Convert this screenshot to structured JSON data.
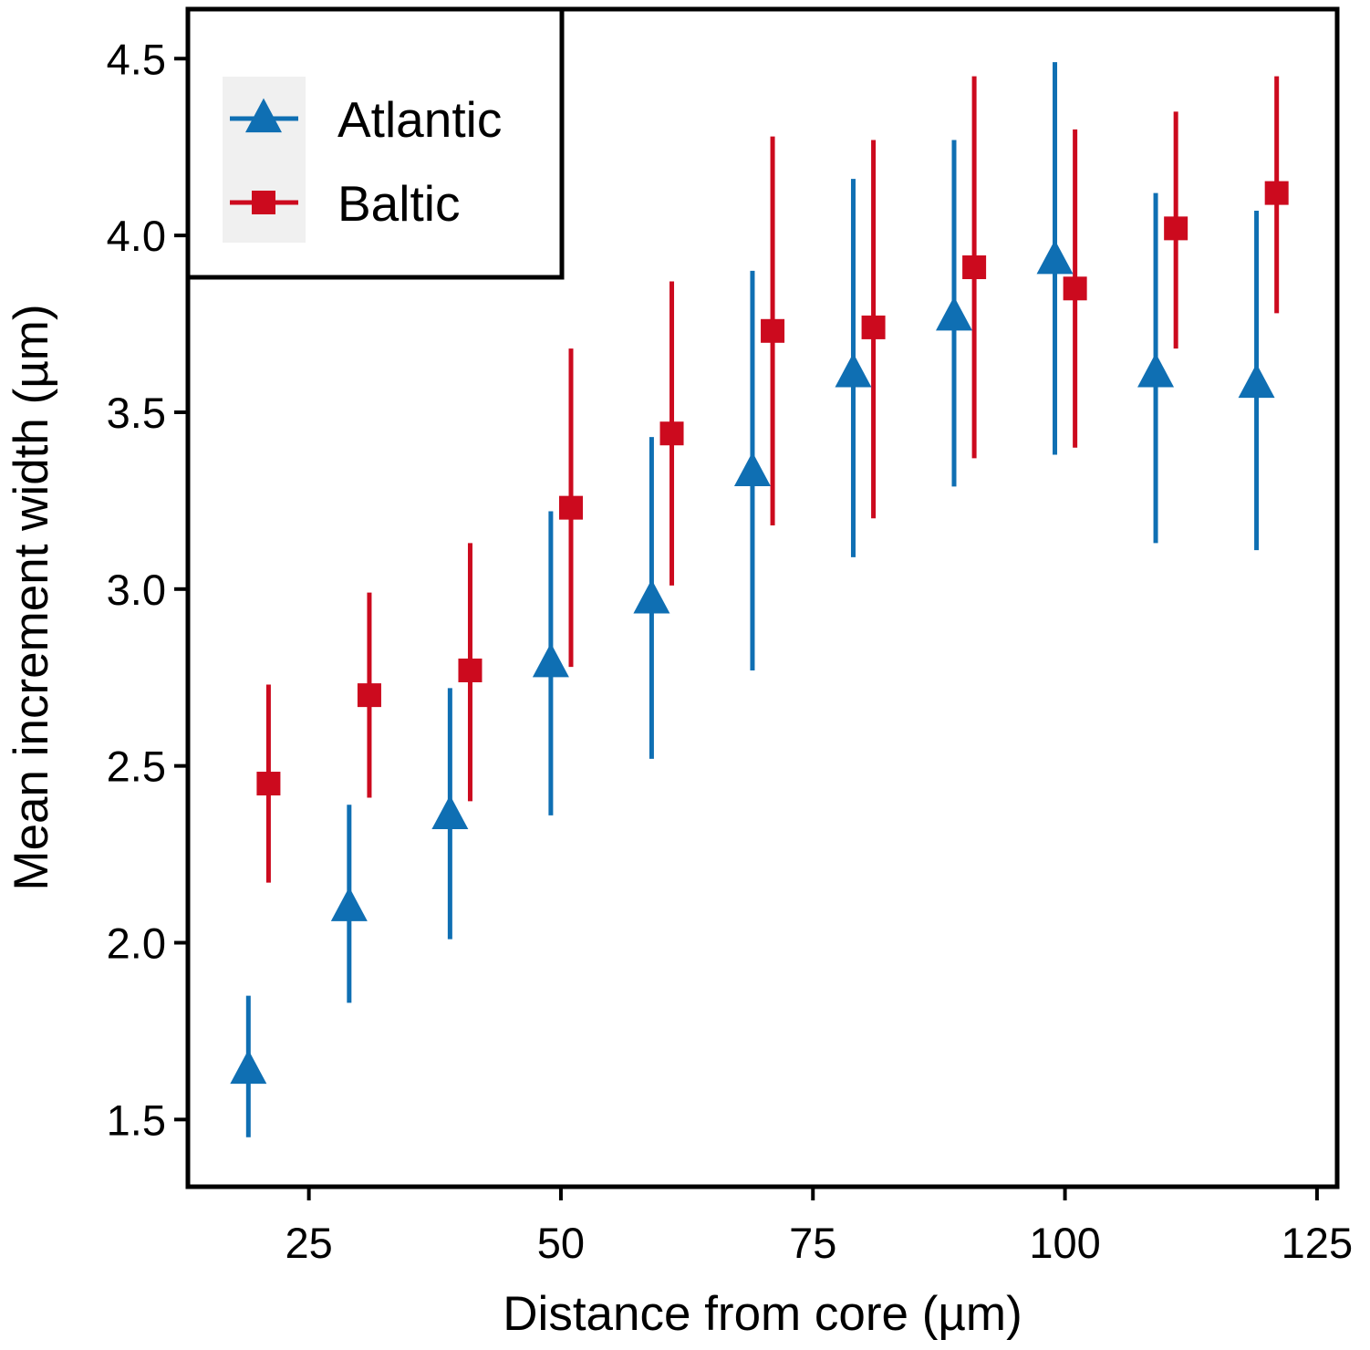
{
  "colors": {
    "Atlantic": "#0f6fb3",
    "Baltic": "#cc0a1e",
    "legend_key_bg": "#f0f0f0",
    "frame": "#000000"
  },
  "chart_data": {
    "type": "scatter",
    "title": "",
    "xlabel": "Distance from core (µm)",
    "ylabel": "Mean increment width (µm)",
    "xlim": [
      13,
      127
    ],
    "ylim": [
      1.31,
      4.64
    ],
    "xticks": [
      25,
      50,
      75,
      100,
      125
    ],
    "xtick_labels": [
      "25",
      "50",
      "75",
      "100",
      "125"
    ],
    "yticks": [
      1.5,
      2.0,
      2.5,
      3.0,
      3.5,
      4.0,
      4.5
    ],
    "ytick_labels": [
      "1.5",
      "2.0",
      "2.5",
      "3.0",
      "3.5",
      "4.0",
      "4.5"
    ],
    "grid": false,
    "legend_position": "top-left",
    "error_bars": true,
    "series": [
      {
        "name": "Atlantic",
        "marker": "triangle",
        "x": [
          19,
          29,
          39,
          49,
          59,
          69,
          79,
          89,
          99,
          109,
          119
        ],
        "y": [
          1.64,
          2.1,
          2.36,
          2.79,
          2.97,
          3.33,
          3.61,
          3.77,
          3.93,
          3.61,
          3.58
        ],
        "lower": [
          1.45,
          1.83,
          2.01,
          2.36,
          2.52,
          2.77,
          3.09,
          3.29,
          3.38,
          3.13,
          3.11
        ],
        "upper": [
          1.85,
          2.39,
          2.72,
          3.22,
          3.43,
          3.9,
          4.16,
          4.27,
          4.49,
          4.12,
          4.07
        ]
      },
      {
        "name": "Baltic",
        "marker": "square",
        "x": [
          21,
          31,
          41,
          51,
          61,
          71,
          81,
          91,
          101,
          111,
          121
        ],
        "y": [
          2.45,
          2.7,
          2.77,
          3.23,
          3.44,
          3.73,
          3.74,
          3.91,
          3.85,
          4.02,
          4.12
        ],
        "lower": [
          2.17,
          2.41,
          2.4,
          2.78,
          3.01,
          3.18,
          3.2,
          3.37,
          3.4,
          3.68,
          3.78
        ],
        "upper": [
          2.73,
          2.99,
          3.13,
          3.68,
          3.87,
          4.28,
          4.27,
          4.45,
          4.3,
          4.35,
          4.45
        ]
      }
    ]
  }
}
